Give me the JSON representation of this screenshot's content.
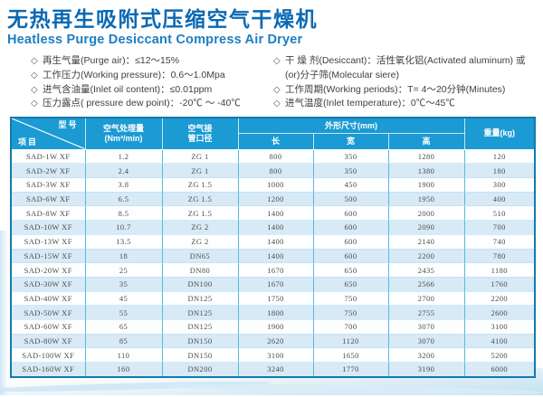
{
  "page": {
    "title_zh": "无热再生吸附式压缩空气干燥机",
    "title_en": "Heatless Purge Desiccant Compress Air Dryer"
  },
  "specs": {
    "bullet": "◇",
    "left": [
      {
        "text": "再生气量(Purge air)：≤12～15%"
      },
      {
        "text": "工作压力(Working pressure)：0.6～1.0Mpa"
      },
      {
        "text": "进气含油量(Inlet oil content)：≤0.01ppm"
      },
      {
        "text": "压力露点( pressure dew point)：-20℃ ～ -40℃"
      }
    ],
    "right": [
      {
        "text": "干 燥 剂(Desiccant)：活性氧化铝(Activated aluminum) 或(or)分子筛(Molecular siere)"
      },
      {
        "text": "工作周期(Working periods)：T= 4～20分钟(Minutes)"
      },
      {
        "text": "进气温度(Inlet temperature)：0℃～45℃"
      }
    ]
  },
  "table": {
    "header": {
      "corner_top": "型号",
      "corner_bottom": "项目",
      "air_capacity_line1": "空气处理量",
      "air_capacity_line2": "(Nm³/min)",
      "pipe_line1": "空气接",
      "pipe_line2": "管口径",
      "dims_group": "外形尺寸(mm)",
      "dim_length": "长",
      "dim_width": "宽",
      "dim_height": "高",
      "weight": "重量(kg)"
    },
    "rows": [
      [
        "SAD-1W XF",
        "1.2",
        "ZG 1",
        "800",
        "350",
        "1280",
        "120"
      ],
      [
        "SAD-2W XF",
        "2.4",
        "ZG 1",
        "800",
        "350",
        "1380",
        "180"
      ],
      [
        "SAD-3W XF",
        "3.8",
        "ZG 1.5",
        "1000",
        "450",
        "1900",
        "300"
      ],
      [
        "SAD-6W XF",
        "6.5",
        "ZG 1.5",
        "1200",
        "500",
        "1950",
        "400"
      ],
      [
        "SAD-8W XF",
        "8.5",
        "ZG 1.5",
        "1400",
        "600",
        "2000",
        "510"
      ],
      [
        "SAD-10W XF",
        "10.7",
        "ZG 2",
        "1400",
        "600",
        "2090",
        "700"
      ],
      [
        "SAD-13W XF",
        "13.5",
        "ZG 2",
        "1400",
        "600",
        "2140",
        "740"
      ],
      [
        "SAD-15W XF",
        "18",
        "DN65",
        "1400",
        "600",
        "2200",
        "780"
      ],
      [
        "SAD-20W XF",
        "25",
        "DN80",
        "1670",
        "650",
        "2435",
        "1180"
      ],
      [
        "SAD-30W XF",
        "35",
        "DN100",
        "1670",
        "650",
        "2566",
        "1760"
      ],
      [
        "SAD-40W XF",
        "45",
        "DN125",
        "1750",
        "750",
        "2700",
        "2200"
      ],
      [
        "SAD-50W XF",
        "55",
        "DN125",
        "1800",
        "750",
        "2755",
        "2600"
      ],
      [
        "SAD-60W XF",
        "65",
        "DN125",
        "1900",
        "700",
        "3070",
        "3100"
      ],
      [
        "SAD-80W XF",
        "85",
        "DN150",
        "2620",
        "1120",
        "3070",
        "4100"
      ],
      [
        "SAD-100W XF",
        "110",
        "DN150",
        "3100",
        "1650",
        "3200",
        "5200"
      ],
      [
        "SAD-160W XF",
        "160",
        "DN200",
        "3240",
        "1770",
        "3190",
        "6000"
      ]
    ]
  },
  "colors": {
    "title_blue": "#0a69b4",
    "subtitle_blue": "#1d7ec3",
    "header_blue": "#1b9ad3",
    "row_alt_blue": "#d7eaf6",
    "cell_border_blue": "#55b9e2",
    "outer_border_blue": "#1479ae"
  }
}
